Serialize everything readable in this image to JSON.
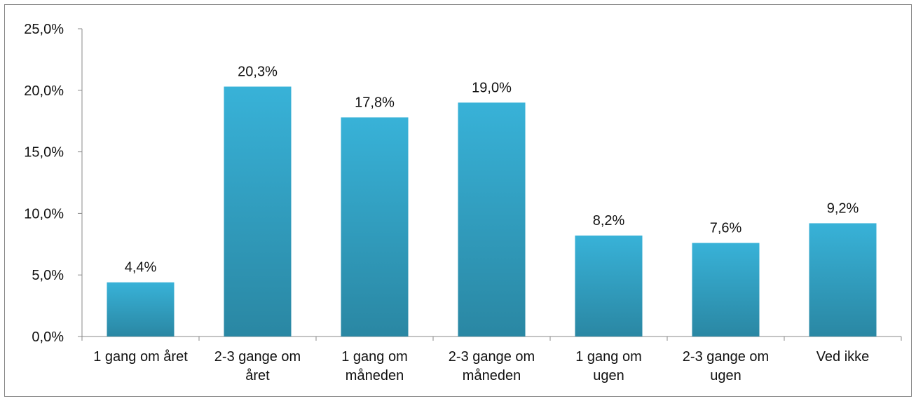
{
  "chart_data": {
    "type": "bar",
    "categories": [
      [
        "1 gang om året"
      ],
      [
        "2-3 gange om",
        "året"
      ],
      [
        "1 gang om",
        "måneden"
      ],
      [
        "2-3 gange om",
        "måneden"
      ],
      [
        "1 gang om",
        "ugen"
      ],
      [
        "2-3 gange om",
        "ugen"
      ],
      [
        "Ved ikke"
      ]
    ],
    "values": [
      4.4,
      20.3,
      17.8,
      19.0,
      8.2,
      7.6,
      9.2
    ],
    "data_labels": [
      "4,4%",
      "20,3%",
      "17,8%",
      "19,0%",
      "8,2%",
      "7,6%",
      "9,2%"
    ],
    "ylim": [
      0,
      25
    ],
    "yticks": [
      0,
      5,
      10,
      15,
      20,
      25
    ],
    "ytick_labels": [
      "0,0%",
      "5,0%",
      "10,0%",
      "15,0%",
      "20,0%",
      "25,0%"
    ],
    "title": "",
    "xlabel": "",
    "ylabel": "",
    "grid": false,
    "legend": "none",
    "colors": {
      "bar_top": "#38b2d8",
      "bar_bottom": "#2a87a3",
      "axis": "#888888"
    }
  }
}
